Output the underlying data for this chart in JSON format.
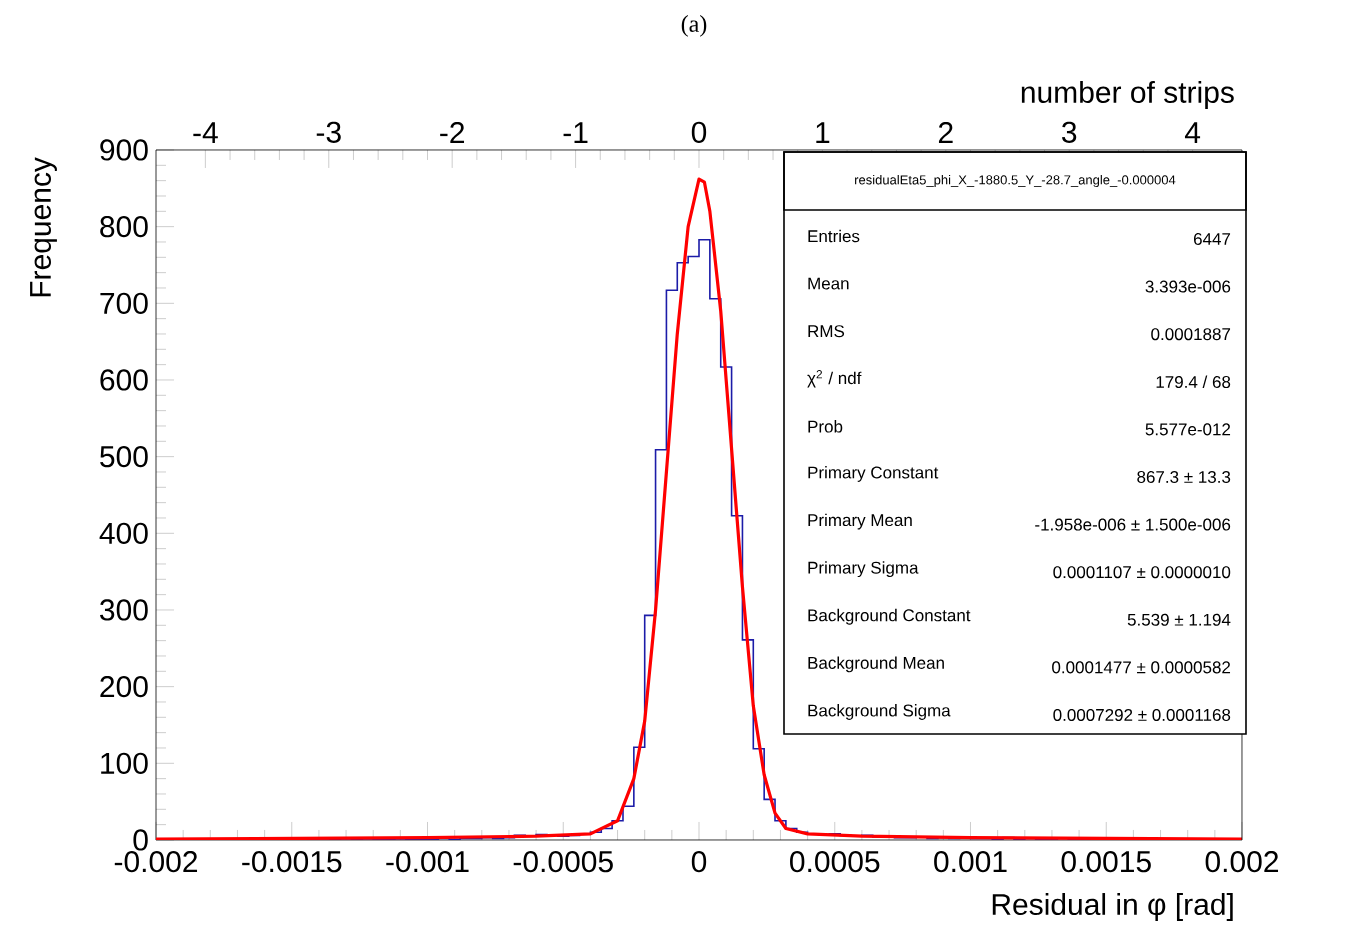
{
  "chart_data": {
    "type": "histogram",
    "title": "(a)",
    "xlabel": "Residual in φ [rad]",
    "ylabel": "Frequency",
    "x2label": "number of strips",
    "xlim": [
      -0.002,
      0.002
    ],
    "xticks": [
      -0.002,
      -0.0015,
      -0.001,
      -0.0005,
      0,
      0.0005,
      0.001,
      0.0015,
      0.002
    ],
    "x2lim": [
      -4.4,
      4.4
    ],
    "x2ticks": [
      -4,
      -3,
      -2,
      -1,
      0,
      1,
      2,
      3,
      4
    ],
    "ylim": [
      0,
      900
    ],
    "yticks": [
      0,
      100,
      200,
      300,
      400,
      500,
      600,
      700,
      800,
      900
    ],
    "series": [
      {
        "type": "histogram",
        "color": "#1c1ca8",
        "bins": [
          -0.002,
          -0.00196,
          -0.00192,
          -0.00188,
          -0.00184,
          -0.0018,
          -0.00176,
          -0.00172,
          -0.00168,
          -0.00164,
          -0.0016,
          -0.00156,
          -0.00152,
          -0.00148,
          -0.00144,
          -0.0014,
          -0.00136,
          -0.00132,
          -0.00128,
          -0.00124,
          -0.0012,
          -0.00116,
          -0.00112,
          -0.00108,
          -0.00104,
          -0.001,
          -0.00096,
          -0.00092,
          -0.00088,
          -0.00084,
          -0.0008,
          -0.00076,
          -0.00072,
          -0.00068,
          -0.00064,
          -0.0006,
          -0.00056,
          -0.00052,
          -0.00048,
          -0.00044,
          -0.0004,
          -0.00036,
          -0.00032,
          -0.00028,
          -0.00024,
          -0.0002,
          -0.00016,
          -0.00012,
          -8e-05,
          -4e-05,
          0,
          4e-05,
          8e-05,
          0.00012,
          0.00016,
          0.0002,
          0.00024,
          0.00028,
          0.00032,
          0.00036,
          0.0004,
          0.00044,
          0.00048,
          0.00052,
          0.00056,
          0.0006,
          0.00064,
          0.00068,
          0.00072,
          0.00076,
          0.0008,
          0.00084,
          0.00088,
          0.00092,
          0.00096,
          0.001,
          0.00104,
          0.00108,
          0.00112,
          0.00116,
          0.0012,
          0.00124,
          0.00128,
          0.00132,
          0.00136,
          0.0014,
          0.00144,
          0.00148,
          0.00152,
          0.00156,
          0.0016,
          0.00164,
          0.00168,
          0.00172,
          0.00176,
          0.0018,
          0.00184,
          0.00188,
          0.00192,
          0.00196,
          0.002
        ],
        "values": [
          0,
          0,
          0,
          0,
          1,
          0,
          0,
          1,
          0,
          0,
          0,
          1,
          0,
          0,
          1,
          0,
          1,
          0,
          1,
          0,
          1,
          1,
          0,
          1,
          1,
          1,
          2,
          1,
          2,
          2,
          3,
          2,
          3,
          6,
          5,
          7,
          6,
          5,
          6,
          8,
          10,
          15,
          25,
          44,
          121,
          293,
          509,
          717,
          753,
          761,
          783,
          706,
          617,
          423,
          261,
          119,
          53,
          25,
          15,
          10,
          8,
          7,
          8,
          6,
          5,
          6,
          4,
          4,
          3,
          3,
          4,
          2,
          3,
          2,
          3,
          2,
          2,
          1,
          3,
          1,
          2,
          1,
          1,
          2,
          1,
          1,
          0,
          1,
          1,
          2,
          1,
          0,
          1,
          1,
          0,
          0,
          1,
          0,
          0,
          0
        ]
      },
      {
        "type": "line",
        "color": "#ff0000",
        "x": [
          -0.002,
          -0.0015,
          -0.001,
          -0.0006,
          -0.0004,
          -0.0003,
          -0.00024,
          -0.0002,
          -0.00016,
          -0.00012,
          -8e-05,
          -4e-05,
          0,
          2e-05,
          4e-05,
          8e-05,
          0.00012,
          0.00016,
          0.0002,
          0.00024,
          0.00028,
          0.00032,
          0.0004,
          0.0006,
          0.001,
          0.0015,
          0.002
        ],
        "values": [
          1,
          2,
          3,
          5,
          8,
          25,
          80,
          155,
          300,
          480,
          660,
          800,
          862,
          858,
          820,
          690,
          510,
          330,
          175,
          85,
          35,
          15,
          8,
          5,
          3,
          2,
          1
        ]
      }
    ],
    "annotations": [
      "residualEta5_phi_X_-1880.5_Y_-28.7_angle_-0.000004",
      "Entries",
      "6447",
      "Mean",
      "3.393e-006",
      "RMS",
      "0.0001887",
      "χ$^{2}$ / ndf",
      "179.4 / 68",
      "Prob",
      "5.577e-012",
      "Primary Constant",
      "867.3 ± 13.3",
      "Primary Mean",
      "-1.958e-006 ± 1.500e-006",
      "Primary Sigma",
      "0.0001107 ± 0.0000010",
      "Background Constant",
      "5.539 ± 1.194",
      "Background Mean",
      "0.0001477 ± 0.0000582",
      "Background Sigma",
      "0.0007292 ± 0.0001168"
    ]
  }
}
